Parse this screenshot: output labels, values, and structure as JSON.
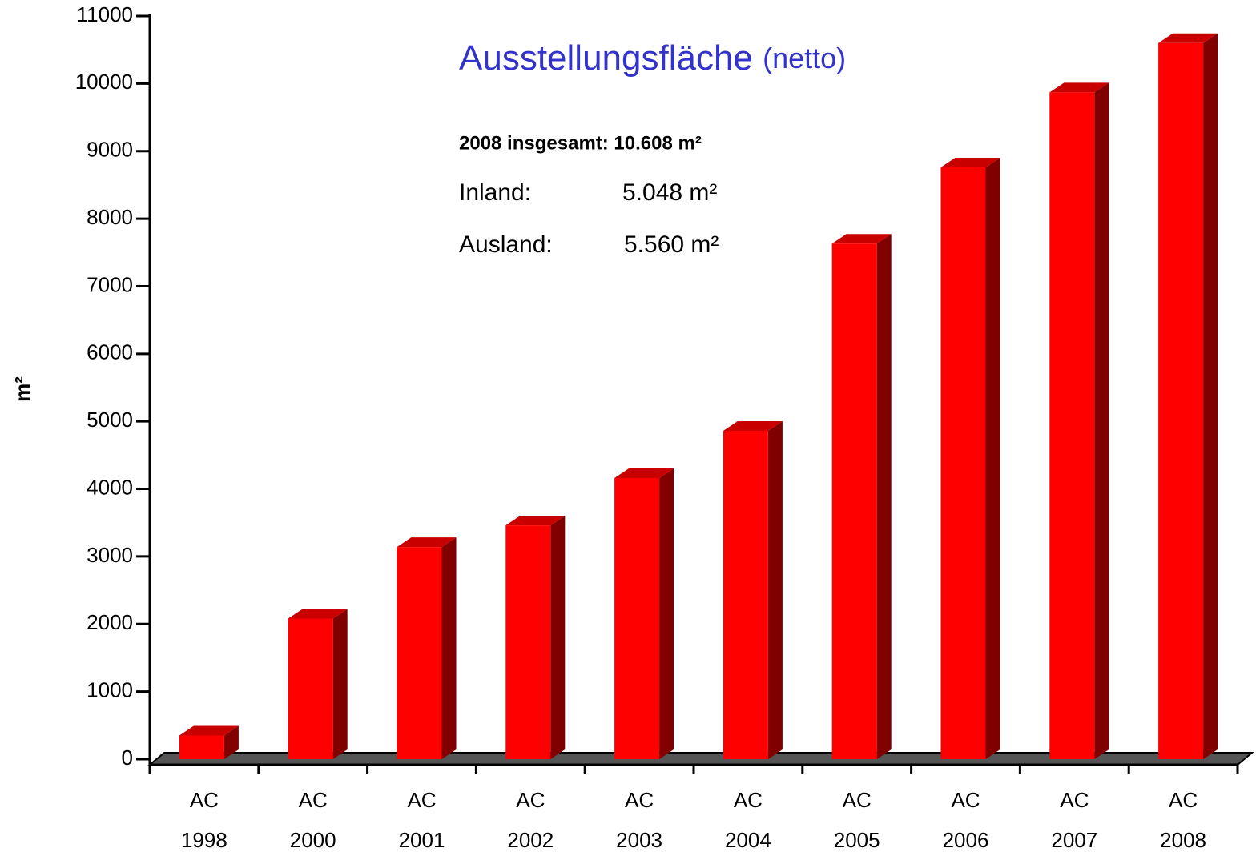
{
  "chart_data": {
    "type": "bar3d",
    "title": "Ausstellungsfläche",
    "subtitle": "(netto)",
    "ylabel": "m²",
    "annotations": {
      "total": "2008 insgesamt: 10.608 m²",
      "inland_label": "Inland:",
      "inland_value": "5.048 m²",
      "ausland_label": "Ausland:",
      "ausland_value": "5.560 m²"
    },
    "categories": [
      "AC 1998",
      "AC 2000",
      "AC 2001",
      "AC 2002",
      "AC 2003",
      "AC 2004",
      "AC 2005",
      "AC 2006",
      "AC 2007",
      "AC 2008"
    ],
    "values": [
      350,
      2080,
      3140,
      3460,
      4160,
      4860,
      7630,
      8760,
      9870,
      10600
    ],
    "color": "#ff0000",
    "ylim": [
      0,
      11000
    ],
    "yticks": [
      0,
      1000,
      2000,
      3000,
      4000,
      5000,
      6000,
      7000,
      8000,
      9000,
      10000,
      11000
    ],
    "grid": false
  }
}
